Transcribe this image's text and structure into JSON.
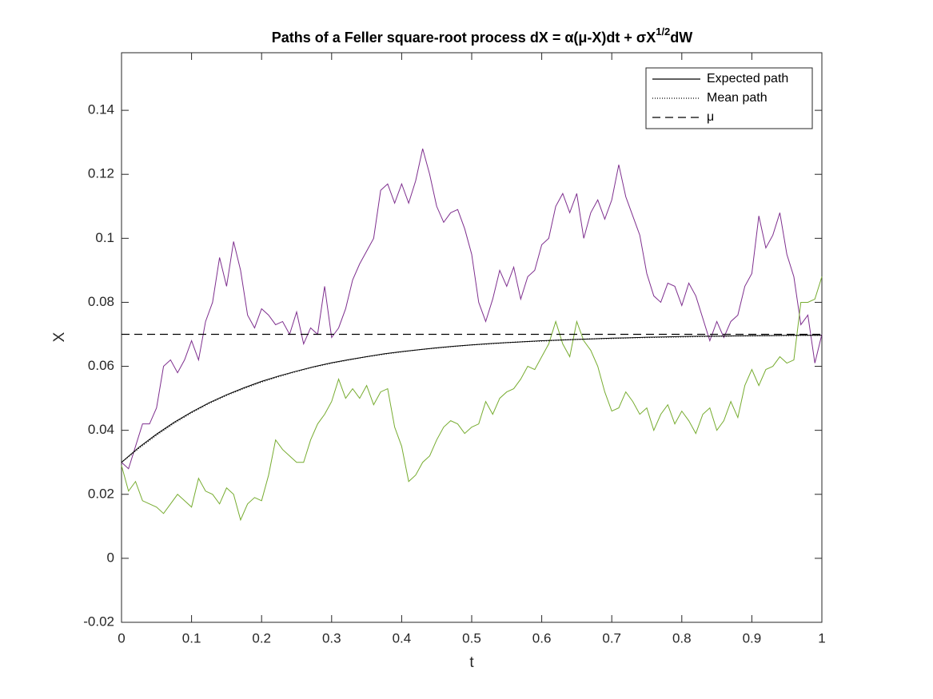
{
  "chart_data": {
    "type": "line",
    "title": [
      "Paths of a Feller square-root process dX = α(μ-X)dt + σX",
      "1/2",
      "dW"
    ],
    "x_label": "t",
    "y_label": "X",
    "xlim": [
      0,
      1
    ],
    "ylim": [
      -0.02,
      0.158
    ],
    "xticks": [
      0,
      0.1,
      0.2,
      0.3,
      0.4,
      0.5,
      0.6,
      0.7,
      0.8,
      0.9,
      1
    ],
    "yticks": [
      -0.02,
      0,
      0.02,
      0.04,
      0.06,
      0.08,
      0.1,
      0.12,
      0.14
    ],
    "legend": "upper right",
    "series": [
      {
        "color": "#7E2F8E",
        "dash": "solid",
        "x": [
          0,
          0.01,
          0.02,
          0.03,
          0.04,
          0.05,
          0.06,
          0.07,
          0.08,
          0.09,
          0.1,
          0.11,
          0.12,
          0.13,
          0.14,
          0.15,
          0.16,
          0.17,
          0.18,
          0.19,
          0.2,
          0.21,
          0.22,
          0.23,
          0.24,
          0.25,
          0.26,
          0.27,
          0.28,
          0.29,
          0.3,
          0.31,
          0.32,
          0.33,
          0.34,
          0.35,
          0.36,
          0.37,
          0.38,
          0.39,
          0.4,
          0.41,
          0.42,
          0.43,
          0.44,
          0.45,
          0.46,
          0.47,
          0.48,
          0.49,
          0.5,
          0.51,
          0.52,
          0.53,
          0.54,
          0.55,
          0.56,
          0.57,
          0.58,
          0.59,
          0.6,
          0.61,
          0.62,
          0.63,
          0.64,
          0.65,
          0.66,
          0.67,
          0.68,
          0.69,
          0.7,
          0.71,
          0.72,
          0.73,
          0.74,
          0.75,
          0.76,
          0.77,
          0.78,
          0.79,
          0.8,
          0.81,
          0.82,
          0.83,
          0.84,
          0.85,
          0.86,
          0.87,
          0.88,
          0.89,
          0.9,
          0.91,
          0.92,
          0.93,
          0.94,
          0.95,
          0.96,
          0.97,
          0.98,
          0.99,
          1
        ],
        "values": [
          0.03,
          0.028,
          0.035,
          0.042,
          0.042,
          0.047,
          0.06,
          0.062,
          0.058,
          0.062,
          0.068,
          0.062,
          0.074,
          0.08,
          0.094,
          0.085,
          0.099,
          0.09,
          0.076,
          0.072,
          0.078,
          0.076,
          0.073,
          0.074,
          0.07,
          0.077,
          0.067,
          0.072,
          0.07,
          0.085,
          0.069,
          0.072,
          0.078,
          0.087,
          0.092,
          0.096,
          0.1,
          0.115,
          0.117,
          0.111,
          0.117,
          0.111,
          0.118,
          0.128,
          0.12,
          0.11,
          0.105,
          0.108,
          0.109,
          0.103,
          0.095,
          0.08,
          0.074,
          0.081,
          0.09,
          0.085,
          0.091,
          0.081,
          0.088,
          0.09,
          0.098,
          0.1,
          0.11,
          0.114,
          0.108,
          0.114,
          0.1,
          0.108,
          0.112,
          0.106,
          0.112,
          0.123,
          0.113,
          0.107,
          0.101,
          0.089,
          0.082,
          0.08,
          0.086,
          0.085,
          0.079,
          0.086,
          0.082,
          0.075,
          0.068,
          0.074,
          0.069,
          0.074,
          0.076,
          0.085,
          0.089,
          0.107,
          0.097,
          0.101,
          0.108,
          0.095,
          0.088,
          0.073,
          0.076,
          0.061,
          0.07
        ]
      },
      {
        "color": "#77AC30",
        "dash": "solid",
        "x": [
          0,
          0.01,
          0.02,
          0.03,
          0.04,
          0.05,
          0.06,
          0.07,
          0.08,
          0.09,
          0.1,
          0.11,
          0.12,
          0.13,
          0.14,
          0.15,
          0.16,
          0.17,
          0.18,
          0.19,
          0.2,
          0.21,
          0.22,
          0.23,
          0.24,
          0.25,
          0.26,
          0.27,
          0.28,
          0.29,
          0.3,
          0.31,
          0.32,
          0.33,
          0.34,
          0.35,
          0.36,
          0.37,
          0.38,
          0.39,
          0.4,
          0.41,
          0.42,
          0.43,
          0.44,
          0.45,
          0.46,
          0.47,
          0.48,
          0.49,
          0.5,
          0.51,
          0.52,
          0.53,
          0.54,
          0.55,
          0.56,
          0.57,
          0.58,
          0.59,
          0.6,
          0.61,
          0.62,
          0.63,
          0.64,
          0.65,
          0.66,
          0.67,
          0.68,
          0.69,
          0.7,
          0.71,
          0.72,
          0.73,
          0.74,
          0.75,
          0.76,
          0.77,
          0.78,
          0.79,
          0.8,
          0.81,
          0.82,
          0.83,
          0.84,
          0.85,
          0.86,
          0.87,
          0.88,
          0.89,
          0.9,
          0.91,
          0.92,
          0.93,
          0.94,
          0.95,
          0.96,
          0.97,
          0.98,
          0.99,
          1
        ],
        "values": [
          0.029,
          0.021,
          0.024,
          0.018,
          0.017,
          0.016,
          0.014,
          0.017,
          0.02,
          0.018,
          0.016,
          0.025,
          0.021,
          0.02,
          0.017,
          0.022,
          0.02,
          0.012,
          0.017,
          0.019,
          0.018,
          0.026,
          0.037,
          0.034,
          0.032,
          0.03,
          0.03,
          0.037,
          0.042,
          0.045,
          0.049,
          0.056,
          0.05,
          0.053,
          0.05,
          0.054,
          0.048,
          0.052,
          0.053,
          0.041,
          0.035,
          0.024,
          0.026,
          0.03,
          0.032,
          0.037,
          0.041,
          0.043,
          0.042,
          0.039,
          0.041,
          0.042,
          0.049,
          0.045,
          0.05,
          0.052,
          0.053,
          0.056,
          0.06,
          0.059,
          0.063,
          0.067,
          0.074,
          0.067,
          0.063,
          0.074,
          0.068,
          0.065,
          0.06,
          0.052,
          0.046,
          0.047,
          0.052,
          0.049,
          0.045,
          0.047,
          0.04,
          0.045,
          0.048,
          0.042,
          0.046,
          0.043,
          0.039,
          0.045,
          0.047,
          0.04,
          0.043,
          0.049,
          0.044,
          0.054,
          0.059,
          0.054,
          0.059,
          0.06,
          0.063,
          0.061,
          0.062,
          0.08,
          0.08,
          0.081,
          0.088
        ]
      },
      {
        "name": "Expected path",
        "color": "#000000",
        "dash": "solid",
        "x": [
          0,
          0.025,
          0.05,
          0.075,
          0.1,
          0.125,
          0.15,
          0.175,
          0.2,
          0.225,
          0.25,
          0.275,
          0.3,
          0.325,
          0.35,
          0.375,
          0.4,
          0.425,
          0.45,
          0.475,
          0.5,
          0.525,
          0.55,
          0.575,
          0.6,
          0.625,
          0.65,
          0.675,
          0.7,
          0.725,
          0.75,
          0.775,
          0.8,
          0.825,
          0.85,
          0.875,
          0.9,
          0.925,
          0.95,
          0.975,
          1
        ],
        "values": [
          0.03,
          0.0347,
          0.0388,
          0.0425,
          0.0457,
          0.0486,
          0.0511,
          0.0533,
          0.0553,
          0.057,
          0.0585,
          0.0599,
          0.0611,
          0.0621,
          0.063,
          0.0639,
          0.0646,
          0.0652,
          0.0658,
          0.0663,
          0.0667,
          0.0671,
          0.0674,
          0.0677,
          0.068,
          0.0682,
          0.0684,
          0.0686,
          0.0688,
          0.0689,
          0.0691,
          0.0692,
          0.0693,
          0.0694,
          0.0694,
          0.0695,
          0.0696,
          0.0696,
          0.0697,
          0.0697,
          0.0697
        ]
      },
      {
        "name": "Mean path",
        "color": "#000000",
        "dash": "dotted",
        "x": [
          0,
          0.025,
          0.05,
          0.075,
          0.1,
          0.125,
          0.15,
          0.175,
          0.2,
          0.225,
          0.25,
          0.275,
          0.3,
          0.325,
          0.35,
          0.375,
          0.4,
          0.425,
          0.45,
          0.475,
          0.5,
          0.525,
          0.55,
          0.575,
          0.6,
          0.625,
          0.65,
          0.675,
          0.7,
          0.725,
          0.75,
          0.775,
          0.8,
          0.825,
          0.85,
          0.875,
          0.9,
          0.925,
          0.95,
          0.975,
          1
        ],
        "values": [
          0.03,
          0.0344,
          0.0385,
          0.0422,
          0.0455,
          0.0484,
          0.0509,
          0.0531,
          0.0551,
          0.0568,
          0.0584,
          0.0598,
          0.061,
          0.062,
          0.063,
          0.0638,
          0.0645,
          0.0652,
          0.0657,
          0.0662,
          0.0667,
          0.067,
          0.0674,
          0.0677,
          0.0679,
          0.0682,
          0.0684,
          0.0686,
          0.0687,
          0.0689,
          0.069,
          0.0691,
          0.0692,
          0.0693,
          0.0694,
          0.0695,
          0.0695,
          0.0696,
          0.0696,
          0.0697,
          0.0697
        ]
      },
      {
        "name": "μ",
        "color": "#000000",
        "dash": "dashed",
        "x": [
          0,
          1
        ],
        "values": [
          0.07,
          0.07
        ]
      }
    ]
  }
}
